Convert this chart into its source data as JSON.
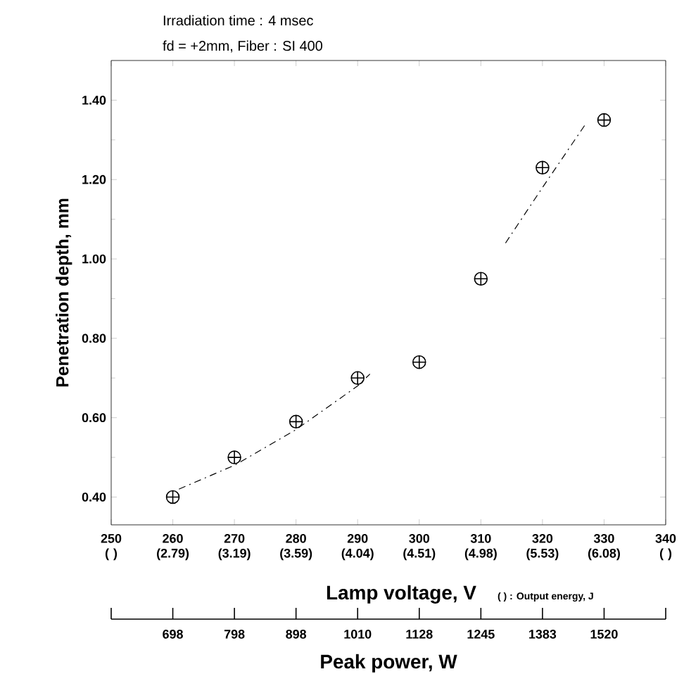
{
  "chart_data": {
    "type": "scatter",
    "title": "Irradiation time : 4 msec",
    "subtitle": "fd = +2mm, Fiber : SI 400",
    "xlabel": "Lamp voltage, V",
    "ylabel": "Penetration depth, mm",
    "xlim": [
      250,
      340
    ],
    "ylim": [
      0.33,
      1.5
    ],
    "xticks": [
      {
        "value": 250,
        "label": "250 (  )"
      },
      {
        "value": 260,
        "label": "260 (2.79)"
      },
      {
        "value": 270,
        "label": "270 (3.19)"
      },
      {
        "value": 280,
        "label": "280 (3.59)"
      },
      {
        "value": 290,
        "label": "290 (4.04)"
      },
      {
        "value": 300,
        "label": "300 (4.51)"
      },
      {
        "value": 310,
        "label": "310 (4.98)"
      },
      {
        "value": 320,
        "label": "320 (5.53)"
      },
      {
        "value": 330,
        "label": "330 (6.08)"
      },
      {
        "value": 340,
        "label": "340 (  )"
      }
    ],
    "yticks": [
      {
        "value": 0.4,
        "label": "0.40"
      },
      {
        "value": 0.6,
        "label": "0.60"
      },
      {
        "value": 0.8,
        "label": "0.80"
      },
      {
        "value": 1.0,
        "label": "1.00"
      },
      {
        "value": 1.2,
        "label": "1.20"
      },
      {
        "value": 1.4,
        "label": "1.40"
      }
    ],
    "annotations": [
      "(  ) : Output energy, J",
      "Peak power, W",
      {
        "text": "698",
        "x": 260
      },
      {
        "text": "798",
        "x": 270
      },
      {
        "text": "898",
        "x": 280
      },
      {
        "text": "1010",
        "x": 290
      },
      {
        "text": "1128",
        "x": 300
      },
      {
        "text": "1245",
        "x": 310
      },
      {
        "text": "1383",
        "x": 320
      },
      {
        "text": "1520",
        "x": 330
      }
    ],
    "grid": false,
    "marker": "cross",
    "series": [
      {
        "color": "#000000",
        "x": [
          260,
          270,
          280,
          290,
          300,
          310,
          320,
          330
        ],
        "values": [
          0.4,
          0.5,
          0.59,
          0.7,
          0.74,
          0.95,
          1.23,
          1.35
        ]
      },
      {
        "type": "line",
        "color": "#000000",
        "marker": "none",
        "line_style": "dashed",
        "x": [
          261,
          270,
          280,
          290,
          292
        ],
        "values": [
          0.42,
          0.48,
          0.57,
          0.68,
          0.71
        ]
      },
      {
        "type": "line",
        "color": "#000000",
        "marker": "none",
        "line_style": "dashed",
        "x": [
          314,
          320,
          327
        ],
        "values": [
          1.04,
          1.18,
          1.34
        ]
      }
    ]
  }
}
